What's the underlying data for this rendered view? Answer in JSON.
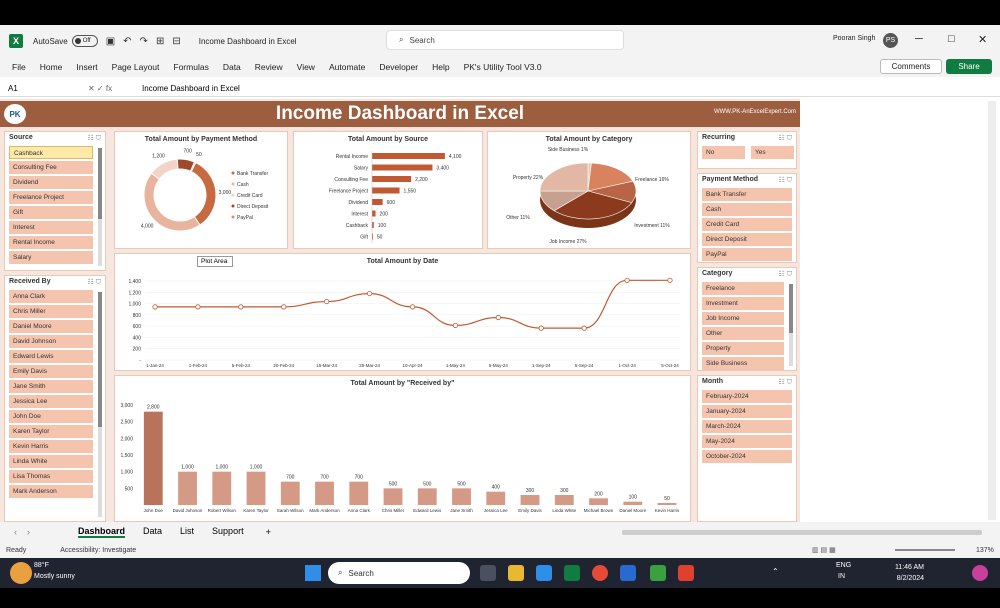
{
  "window": {
    "autosave_label": "AutoSave",
    "autosave_state": "Off",
    "doc_title": "Income Dashboard in Excel",
    "search_placeholder": "Search",
    "user_name": "Pooran Singh",
    "user_initials": "PS"
  },
  "ribbon": {
    "tabs": [
      "File",
      "Home",
      "Insert",
      "Page Layout",
      "Formulas",
      "Data",
      "Review",
      "View",
      "Automate",
      "Developer",
      "Help",
      "PK's Utility Tool V3.0"
    ],
    "comments_label": "Comments",
    "share_label": "Share"
  },
  "formula_bar": {
    "cell_ref": "A1",
    "formula": "Income Dashboard in Excel"
  },
  "dashboard": {
    "title": "Income Dashboard in Excel",
    "logo_text": "PK",
    "site": "WWW.PK-AnExcelExpert.Com",
    "source_slicer": {
      "title": "Source",
      "items": [
        "Cashback",
        "Consulting Fee",
        "Dividend",
        "Freelance Project",
        "Gift",
        "Interest",
        "Rental Income",
        "Salary"
      ],
      "selected": "Cashback"
    },
    "received_slicer": {
      "title": "Received By",
      "items": [
        "Anna Clark",
        "Chris Miller",
        "Daniel Moore",
        "David Johnson",
        "Edward Lewis",
        "Emily Davis",
        "Jane Smith",
        "Jessica Lee",
        "John Doe",
        "Karen Taylor",
        "Kevin Harris",
        "Linda White",
        "Lisa Thomas",
        "Mark Anderson"
      ]
    },
    "recurring_slicer": {
      "title": "Recurring",
      "items": [
        "No",
        "Yes"
      ]
    },
    "payment_slicer": {
      "title": "Payment Method",
      "items": [
        "Bank Transfer",
        "Cash",
        "Credit Card",
        "Direct Deposit",
        "PayPal"
      ]
    },
    "category_slicer": {
      "title": "Category",
      "items": [
        "Freelance",
        "Investment",
        "Job Income",
        "Other",
        "Property",
        "Side Business"
      ]
    },
    "month_slicer": {
      "title": "Month",
      "items": [
        "February-2024",
        "January-2024",
        "March-2024",
        "May-2024",
        "October-2024"
      ]
    },
    "plot_area_label": "Plot Area"
  },
  "chart_data": [
    {
      "type": "pie",
      "title": "Total Amount by Payment Method",
      "categories": [
        "Bank Transfer",
        "Cash",
        "Credit Card",
        "Direct Deposit",
        "PayPal"
      ],
      "values": [
        3000,
        4000,
        1200,
        700,
        50
      ],
      "labels": [
        "3,000",
        "4,000",
        "1,200",
        "700",
        "50"
      ],
      "colors": [
        "#c8693f",
        "#e8b49e",
        "#f2d4c6",
        "#9c4a2a",
        "#d98f6e"
      ],
      "donut": true
    },
    {
      "type": "bar",
      "title": "Total Amount by Source",
      "categories": [
        "Rental Income",
        "Salary",
        "Consulting Fee",
        "Freelance Project",
        "Dividend",
        "Interest",
        "Cashback",
        "Gift"
      ],
      "values": [
        4100,
        3400,
        2200,
        1550,
        600,
        200,
        100,
        50
      ],
      "labels": [
        "4,100",
        "3,400",
        "2,200",
        "1,550",
        "600",
        "200",
        "100",
        "50"
      ],
      "orientation": "horizontal"
    },
    {
      "type": "pie",
      "title": "Total Amount by Category",
      "categories": [
        "Side Business",
        "Freelance",
        "Investment",
        "Job Income",
        "Other",
        "Property"
      ],
      "values": [
        1,
        16,
        11,
        27,
        11,
        22
      ],
      "labels": [
        "Side Business 1%",
        "Freelance 16%",
        "Investment 11%",
        "Job Income 27%",
        "Other 11%",
        "Property 22%"
      ],
      "colors": [
        "#f0c8b4",
        "#d8825e",
        "#b96446",
        "#8b3a1e",
        "#c8a090",
        "#e2b8a4"
      ]
    },
    {
      "type": "line",
      "title": "Total Amount by Date",
      "x": [
        "1-Jan-24",
        "1-Feb-24",
        "5-Feb-24",
        "20-Feb-24",
        "15-Mar-24",
        "25-Mar-24",
        "10-Apr-24",
        "1-May-24",
        "5-May-24",
        "1-Sep-24",
        "5-Sep-24",
        "1-Oct-24",
        "5-Oct-24"
      ],
      "values": [
        1000,
        1000,
        1000,
        1000,
        1100,
        1250,
        1000,
        650,
        800,
        600,
        600,
        1500,
        1500
      ],
      "yticks": [
        "1,400",
        "1,200",
        "1,000",
        "800",
        "600",
        "400",
        "200",
        "-"
      ],
      "ylim": [
        0,
        1600
      ]
    },
    {
      "type": "bar",
      "title": "Total Amount by \"Received by\"",
      "categories": [
        "John Doe",
        "David Johnson",
        "Robert Wilson",
        "Karen Taylor",
        "Sarah Wilson",
        "Mark Anderson",
        "Anna Clark",
        "Chris Miller",
        "Edward Lewis",
        "Jane Smith",
        "Jessica Lee",
        "Emily Davis",
        "Linda White",
        "Michael Brown",
        "Daniel Moore",
        "Kevin Harris"
      ],
      "values": [
        2800,
        1000,
        1000,
        1000,
        700,
        700,
        700,
        500,
        500,
        500,
        400,
        300,
        300,
        200,
        100,
        50
      ],
      "labels": [
        "2,800",
        "1,000",
        "1,000",
        "1,000",
        "700",
        "700",
        "700",
        "500",
        "500",
        "500",
        "400",
        "300",
        "300",
        "200",
        "100",
        "50"
      ],
      "yticks": [
        "3,000",
        "2,500",
        "2,000",
        "1,500",
        "1,000",
        "500"
      ],
      "ylim": [
        0,
        3000
      ]
    }
  ],
  "sheet_tabs": [
    "Dashboard",
    "Data",
    "List",
    "Support"
  ],
  "status": {
    "ready": "Ready",
    "accessibility": "Accessibility: Investigate",
    "zoom": "137%"
  },
  "taskbar": {
    "weather_temp": "88°F",
    "weather_desc": "Mostly sunny",
    "search_label": "Search",
    "lang1": "ENG",
    "lang2": "IN",
    "time": "11:46 AM",
    "date": "8/2/2024"
  }
}
